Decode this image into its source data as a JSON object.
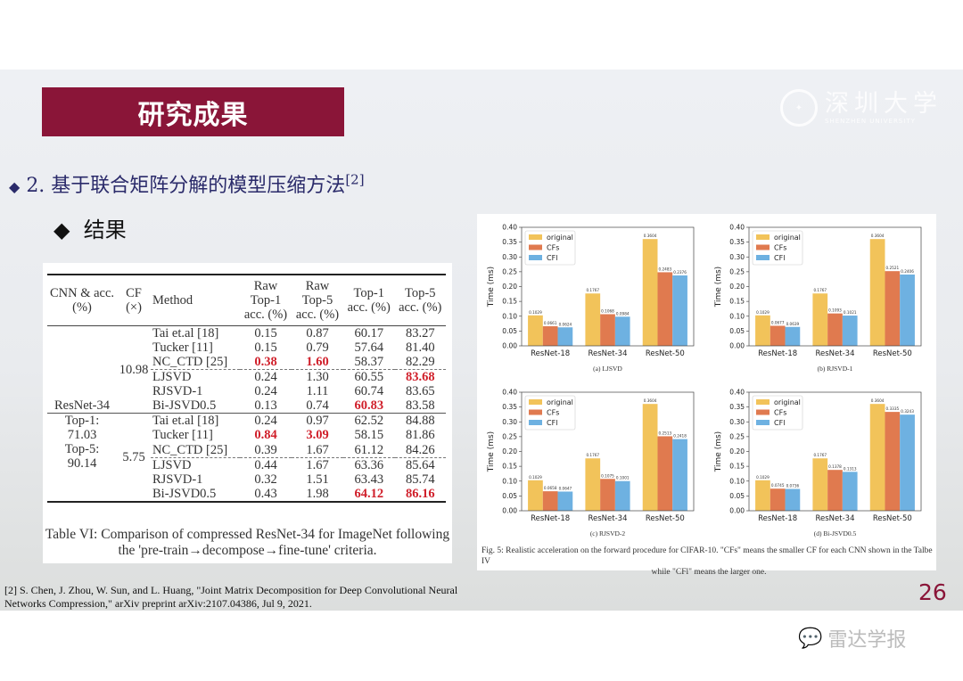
{
  "title": "研究成果",
  "logo": {
    "cn": "深圳大学",
    "en": "SHENZHEN UNIVERSITY"
  },
  "bullet1": {
    "text": "2. 基于联合矩阵分解的模型压缩方法",
    "sup": "[2]"
  },
  "bullet2": "结果",
  "table": {
    "headers": [
      "CNN & acc. (%)",
      "CF (×)",
      "Method",
      "Raw Top-1 acc. (%)",
      "Raw Top-5 acc. (%)",
      "Top-1 acc. (%)",
      "Top-5 acc. (%)"
    ],
    "cnn": "ResNet-34",
    "cnn_top1": "Top-1: 71.03",
    "cnn_top5": "Top-5: 90.14",
    "groups": [
      {
        "cf": "10.98",
        "rows": [
          [
            "Tai et.al [18]",
            "0.15",
            "0.87",
            "60.17",
            "83.27"
          ],
          [
            "Tucker [11]",
            "0.15",
            "0.79",
            "57.64",
            "81.40"
          ],
          [
            "NC_CTD [25]",
            "0.38",
            "1.60",
            "58.37",
            "82.29"
          ],
          [
            "LJSVD",
            "0.24",
            "1.30",
            "60.55",
            "83.68"
          ],
          [
            "RJSVD-1",
            "0.24",
            "1.11",
            "60.74",
            "83.65"
          ],
          [
            "Bi-JSVD0.5",
            "0.13",
            "0.74",
            "60.83",
            "83.58"
          ]
        ]
      },
      {
        "cf": "5.75",
        "rows": [
          [
            "Tai et.al [18]",
            "0.24",
            "0.97",
            "62.52",
            "84.88"
          ],
          [
            "Tucker [11]",
            "0.84",
            "3.09",
            "58.15",
            "81.86"
          ],
          [
            "NC_CTD [25]",
            "0.39",
            "1.67",
            "61.12",
            "84.26"
          ],
          [
            "LJSVD",
            "0.44",
            "1.67",
            "63.36",
            "85.64"
          ],
          [
            "RJSVD-1",
            "0.32",
            "1.51",
            "63.43",
            "85.74"
          ],
          [
            "Bi-JSVD0.5",
            "0.43",
            "1.98",
            "64.12",
            "86.16"
          ]
        ]
      }
    ],
    "caption": "Table VI: Comparison of compressed ResNet-34 for ImageNet following the 'pre-train→decompose→fine-tune' criteria."
  },
  "chart_data": [
    {
      "type": "bar",
      "title": "(a) LJSVD",
      "ylabel": "Time (ms)",
      "ylim": [
        0,
        0.4
      ],
      "yticks": [
        "0.00",
        "0.05",
        "0.10",
        "0.15",
        "0.20",
        "0.25",
        "0.30",
        "0.35",
        "0.40"
      ],
      "categories": [
        "ResNet-18",
        "ResNet-34",
        "ResNet-50"
      ],
      "legend": "top-left",
      "series": [
        {
          "name": "original",
          "values": [
            0.1029,
            0.1767,
            0.3604
          ]
        },
        {
          "name": "CFs",
          "values": [
            0.0661,
            0.1068,
            0.2483
          ]
        },
        {
          "name": "CFl",
          "values": [
            0.0624,
            0.0984,
            0.2376
          ]
        }
      ]
    },
    {
      "type": "bar",
      "title": "(b) RJSVD-1",
      "ylabel": "Time (ms)",
      "ylim": [
        0,
        0.4
      ],
      "yticks": [
        "0.00",
        "0.05",
        "0.10",
        "0.15",
        "0.20",
        "0.25",
        "0.30",
        "0.35",
        "0.40"
      ],
      "categories": [
        "ResNet-18",
        "ResNet-34",
        "ResNet-50"
      ],
      "legend": "top-left",
      "series": [
        {
          "name": "original",
          "values": [
            0.1029,
            0.1767,
            0.3604
          ]
        },
        {
          "name": "CFs",
          "values": [
            0.0677,
            0.1093,
            0.2521
          ]
        },
        {
          "name": "CFl",
          "values": [
            0.0639,
            0.1021,
            0.2406
          ]
        }
      ]
    },
    {
      "type": "bar",
      "title": "(c) RJSVD-2",
      "ylabel": "Time (ms)",
      "ylim": [
        0,
        0.4
      ],
      "yticks": [
        "0.00",
        "0.05",
        "0.10",
        "0.15",
        "0.20",
        "0.25",
        "0.30",
        "0.35",
        "0.40"
      ],
      "categories": [
        "ResNet-18",
        "ResNet-34",
        "ResNet-50"
      ],
      "legend": "top-left",
      "series": [
        {
          "name": "original",
          "values": [
            0.1029,
            0.1767,
            0.3604
          ]
        },
        {
          "name": "CFs",
          "values": [
            0.0658,
            0.1075,
            0.2513
          ]
        },
        {
          "name": "CFl",
          "values": [
            0.0647,
            0.1001,
            0.2418
          ]
        }
      ]
    },
    {
      "type": "bar",
      "title": "(d) Bi-JSVD0.5",
      "ylabel": "Time (ms)",
      "ylim": [
        0,
        0.4
      ],
      "yticks": [
        "0.00",
        "0.05",
        "0.10",
        "0.15",
        "0.20",
        "0.25",
        "0.30",
        "0.35",
        "0.40"
      ],
      "categories": [
        "ResNet-18",
        "ResNet-34",
        "ResNet-50"
      ],
      "legend": "top-left",
      "series": [
        {
          "name": "original",
          "values": [
            0.1029,
            0.1767,
            0.3604
          ]
        },
        {
          "name": "CFs",
          "values": [
            0.0745,
            0.1378,
            0.3335
          ]
        },
        {
          "name": "CFl",
          "values": [
            0.0736,
            0.1313,
            0.3243
          ]
        }
      ]
    }
  ],
  "series_colors": [
    "#f2c35a",
    "#e07a4f",
    "#6eb1e1"
  ],
  "fig_caption": {
    "line1": "Fig. 5: Realistic acceleration on the forward procedure for CIFAR-10. \"CFs\" means the smaller CF for each CNN shown in the Talbe IV",
    "line2": "while \"CFl\" means the larger one."
  },
  "reference": {
    "line1": "[2] S. Chen, J. Zhou, W. Sun,  and L. Huang, \"Joint Matrix Decomposition for Deep Convolutional Neural",
    "line2": "Networks Compression,\" arXiv preprint arXiv:2107.04386, Jul 9, 2021."
  },
  "page_number": "26",
  "watermark": "雷达学报"
}
